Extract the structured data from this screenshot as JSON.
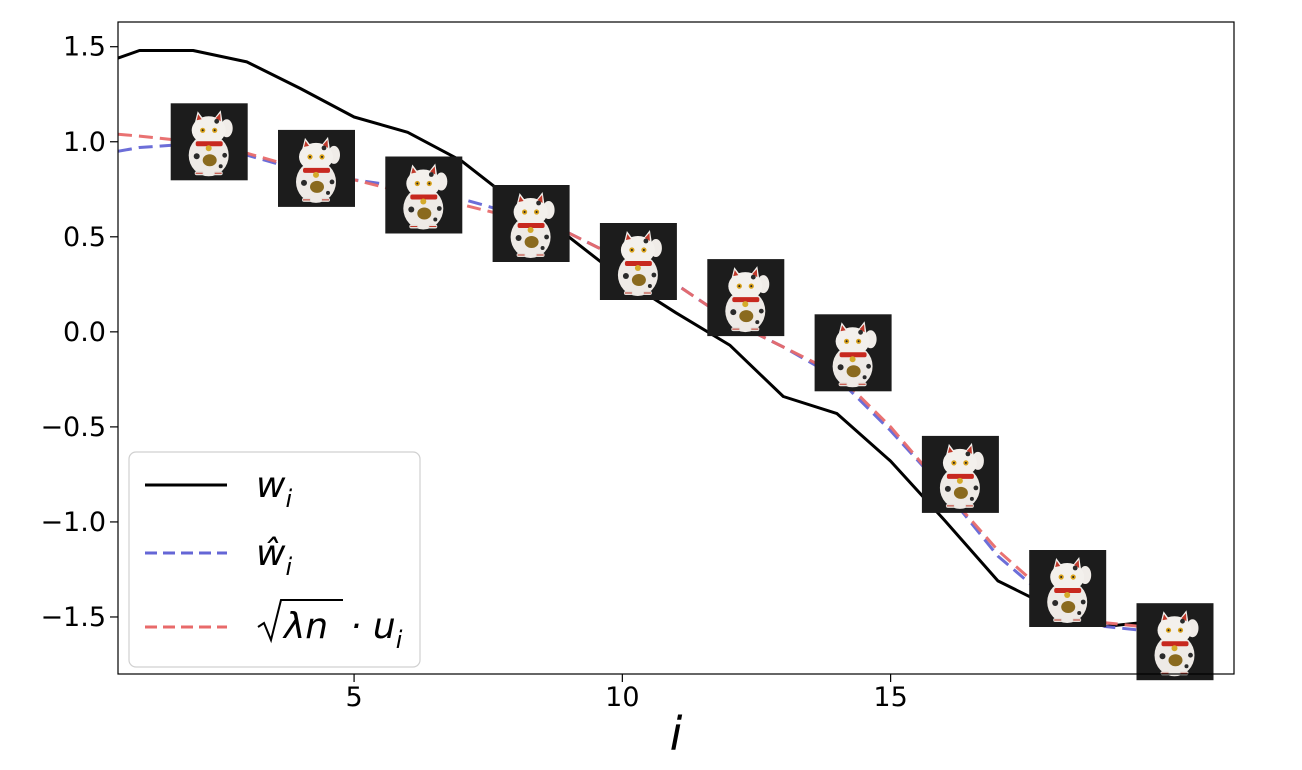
{
  "chart_data": {
    "type": "line",
    "title": "",
    "xlabel": "i",
    "ylabel": "",
    "xlim": [
      0.6,
      21.4
    ],
    "ylim": [
      -1.8,
      1.63
    ],
    "xticks": [
      5,
      10,
      15
    ],
    "xtick_labels": [
      "5",
      "10",
      "15"
    ],
    "yticks": [
      1.5,
      1.0,
      0.5,
      0.0,
      -0.5,
      -1.0,
      -1.5
    ],
    "ytick_labels": [
      "1.5",
      "1.0",
      "0.5",
      "0.0",
      "−0.5",
      "−1.0",
      "−1.5"
    ],
    "grid": false,
    "legend_position": "lower-left",
    "series": [
      {
        "name": "w_i",
        "style": "solid",
        "color": "#000000",
        "x": [
          0.6,
          1,
          2,
          3,
          4,
          5,
          6,
          7,
          8,
          9,
          10,
          11,
          12,
          13,
          14,
          15,
          16,
          17,
          18,
          19,
          20,
          21
        ],
        "y": [
          1.44,
          1.48,
          1.48,
          1.42,
          1.28,
          1.13,
          1.05,
          0.9,
          0.68,
          0.5,
          0.28,
          0.1,
          -0.07,
          -0.34,
          -0.43,
          -0.68,
          -0.99,
          -1.31,
          -1.45,
          -1.55,
          -1.52,
          -1.59
        ]
      },
      {
        "name": "w-hat_i",
        "style": "dashed",
        "color": "#6466d6",
        "x": [
          0.6,
          1,
          2,
          3,
          4,
          5,
          6,
          7,
          8,
          9,
          10,
          11,
          12,
          13,
          14,
          15,
          16,
          17,
          18,
          19,
          20,
          21
        ],
        "y": [
          0.95,
          0.97,
          0.99,
          0.93,
          0.85,
          0.8,
          0.76,
          0.7,
          0.62,
          0.52,
          0.38,
          0.25,
          0.06,
          -0.08,
          -0.24,
          -0.52,
          -0.83,
          -1.18,
          -1.42,
          -1.55,
          -1.58,
          -1.64
        ]
      },
      {
        "name": "sqrt(lambda n) u_i",
        "style": "dashed",
        "color": "#e86a6a",
        "x": [
          0.6,
          1,
          2,
          3,
          4,
          5,
          6,
          7,
          8,
          9,
          10,
          11,
          12,
          13,
          14,
          15,
          16,
          17,
          18,
          19,
          20,
          21
        ],
        "y": [
          1.04,
          1.03,
          1.0,
          0.94,
          0.86,
          0.8,
          0.73,
          0.67,
          0.6,
          0.52,
          0.38,
          0.25,
          0.06,
          -0.08,
          -0.22,
          -0.5,
          -0.83,
          -1.15,
          -1.4,
          -1.53,
          -1.56,
          -1.62
        ]
      }
    ],
    "image_markers": [
      {
        "x": 2.3,
        "y": 1.0
      },
      {
        "x": 4.3,
        "y": 0.86
      },
      {
        "x": 6.3,
        "y": 0.72
      },
      {
        "x": 8.3,
        "y": 0.57
      },
      {
        "x": 10.3,
        "y": 0.37
      },
      {
        "x": 12.3,
        "y": 0.18
      },
      {
        "x": 14.3,
        "y": -0.11
      },
      {
        "x": 16.3,
        "y": -0.75
      },
      {
        "x": 18.3,
        "y": -1.35
      },
      {
        "x": 20.3,
        "y": -1.63
      }
    ],
    "marker_icon": "maneki-neko-cat-photo"
  }
}
